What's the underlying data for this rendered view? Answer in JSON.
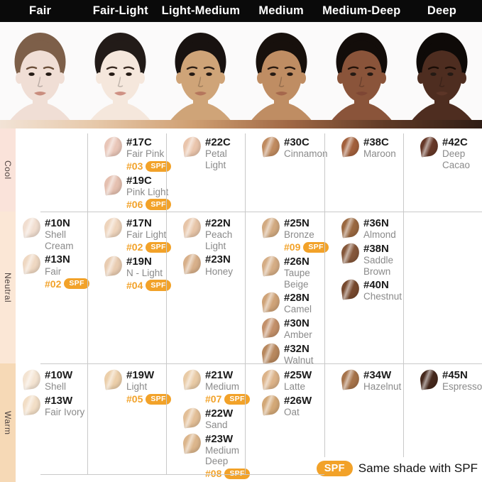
{
  "header": {
    "categories": [
      "Fair",
      "Fair-Light",
      "Light-Medium",
      "Medium",
      "Medium-Deep",
      "Deep"
    ]
  },
  "faces": [
    {
      "category": "Fair",
      "skin": "#f0ded5",
      "hair": "#7d5f49",
      "brow": "#6b4f3a",
      "lip": "#c98d7e"
    },
    {
      "category": "Fair-Light",
      "skin": "#f5e7dc",
      "hair": "#221b18",
      "brow": "#3a2b22",
      "lip": "#cf9184"
    },
    {
      "category": "Light-Medium",
      "skin": "#cfa478",
      "hair": "#181210",
      "brow": "#2e2016",
      "lip": "#b5765c"
    },
    {
      "category": "Medium",
      "skin": "#bf8d63",
      "hair": "#17100c",
      "brow": "#2a1a10",
      "lip": "#a5674c"
    },
    {
      "category": "Medium-Deep",
      "skin": "#8a543a",
      "hair": "#130d0a",
      "brow": "#241309",
      "lip": "#7e4634"
    },
    {
      "category": "Deep",
      "skin": "#4e2d20",
      "hair": "#0e0a08",
      "brow": "#1a0d06",
      "lip": "#5c3527"
    }
  ],
  "gradient_bar": [
    "#f2e3d6",
    "#e6c8a9",
    "#cf9f72",
    "#a06845",
    "#5f3a26",
    "#2f1d15"
  ],
  "rows": [
    {
      "label": "Cool",
      "strip_color": "#fae3da",
      "cells": [
        [],
        [
          {
            "code": "#17C",
            "name": "Fair Pink",
            "spf": "#03",
            "color": "#e9c6b8"
          },
          {
            "code": "#19C",
            "name": "Pink Light",
            "spf": "#06",
            "color": "#e5c0b0"
          }
        ],
        [
          {
            "code": "#22C",
            "name": "Petal Light",
            "color": "#eac5ac"
          }
        ],
        [
          {
            "code": "#30C",
            "name": "Cinnamon",
            "color": "#c08b60"
          }
        ],
        [
          {
            "code": "#38C",
            "name": "Maroon",
            "color": "#a2603c"
          }
        ],
        [
          {
            "code": "#42C",
            "name": "Deep\nCacao",
            "color": "#663828"
          }
        ]
      ]
    },
    {
      "label": "Neutral",
      "strip_color": "#fbe7d6",
      "cells": [
        [
          {
            "code": "#10N",
            "name": "Shell\nCream",
            "color": "#f1ded0"
          },
          {
            "code": "#13N",
            "name": "Fair",
            "spf": "#02",
            "color": "#efd8c2"
          }
        ],
        [
          {
            "code": "#17N",
            "name": "Fair Light",
            "spf": "#02",
            "color": "#eed4bc"
          },
          {
            "code": "#19N",
            "name": "N - Light",
            "spf": "#04",
            "color": "#e9ccb1"
          }
        ],
        [
          {
            "code": "#22N",
            "name": "Peach\nLight",
            "color": "#e7c5a8"
          },
          {
            "code": "#23N",
            "name": "Honey",
            "color": "#d8b08a"
          }
        ],
        [
          {
            "code": "#25N",
            "name": "Bronze",
            "spf": "#09",
            "color": "#d2aa81"
          },
          {
            "code": "#26N",
            "name": "Taupe\nBeige",
            "color": "#d5ad85"
          },
          {
            "code": "#28N",
            "name": "Camel",
            "color": "#cfa378"
          },
          {
            "code": "#30N",
            "name": "Amber",
            "color": "#c3906a"
          },
          {
            "code": "#32N",
            "name": "Walnut",
            "color": "#b8885e"
          }
        ],
        [
          {
            "code": "#36N",
            "name": "Almond",
            "color": "#9a6840"
          },
          {
            "code": "#38N",
            "name": "Saddle\nBrown",
            "color": "#85573a"
          },
          {
            "code": "#40N",
            "name": "Chestnut",
            "color": "#77492e"
          }
        ],
        []
      ]
    },
    {
      "label": "Warm",
      "strip_color": "#f6d9b6",
      "cells": [
        [
          {
            "code": "#10W",
            "name": "Shell",
            "color": "#f4e4d2"
          },
          {
            "code": "#13W",
            "name": "Fair Ivory",
            "color": "#f2dec6"
          }
        ],
        [
          {
            "code": "#19W",
            "name": "Light",
            "spf": "#05",
            "color": "#eccfaa"
          }
        ],
        [
          {
            "code": "#21W",
            "name": "Medium",
            "spf": "#07",
            "color": "#e9cba6"
          },
          {
            "code": "#22W",
            "name": "Sand",
            "color": "#e3bf97"
          },
          {
            "code": "#23W",
            "name": "Medium\nDeep",
            "spf": "#08",
            "color": "#dcb68c"
          }
        ],
        [
          {
            "code": "#25W",
            "name": "Latte",
            "color": "#dcb389"
          },
          {
            "code": "#26W",
            "name": "Oat",
            "color": "#d3a877"
          }
        ],
        [
          {
            "code": "#34W",
            "name": "Hazelnut",
            "color": "#a6734a"
          }
        ],
        [
          {
            "code": "#45N",
            "name": "Espresso",
            "color": "#46291d"
          }
        ]
      ]
    }
  ],
  "legend": {
    "badge": "SPF",
    "text": "Same shade with SPF"
  },
  "colors": {
    "accent": "#F2A229",
    "grid_line": "#c9c9c9",
    "header_bg": "#0a0a0a",
    "header_text": "#ffffff",
    "code_text": "#1b1b1b",
    "name_text": "#8a8a8a",
    "strip_text": "#4e4340"
  }
}
